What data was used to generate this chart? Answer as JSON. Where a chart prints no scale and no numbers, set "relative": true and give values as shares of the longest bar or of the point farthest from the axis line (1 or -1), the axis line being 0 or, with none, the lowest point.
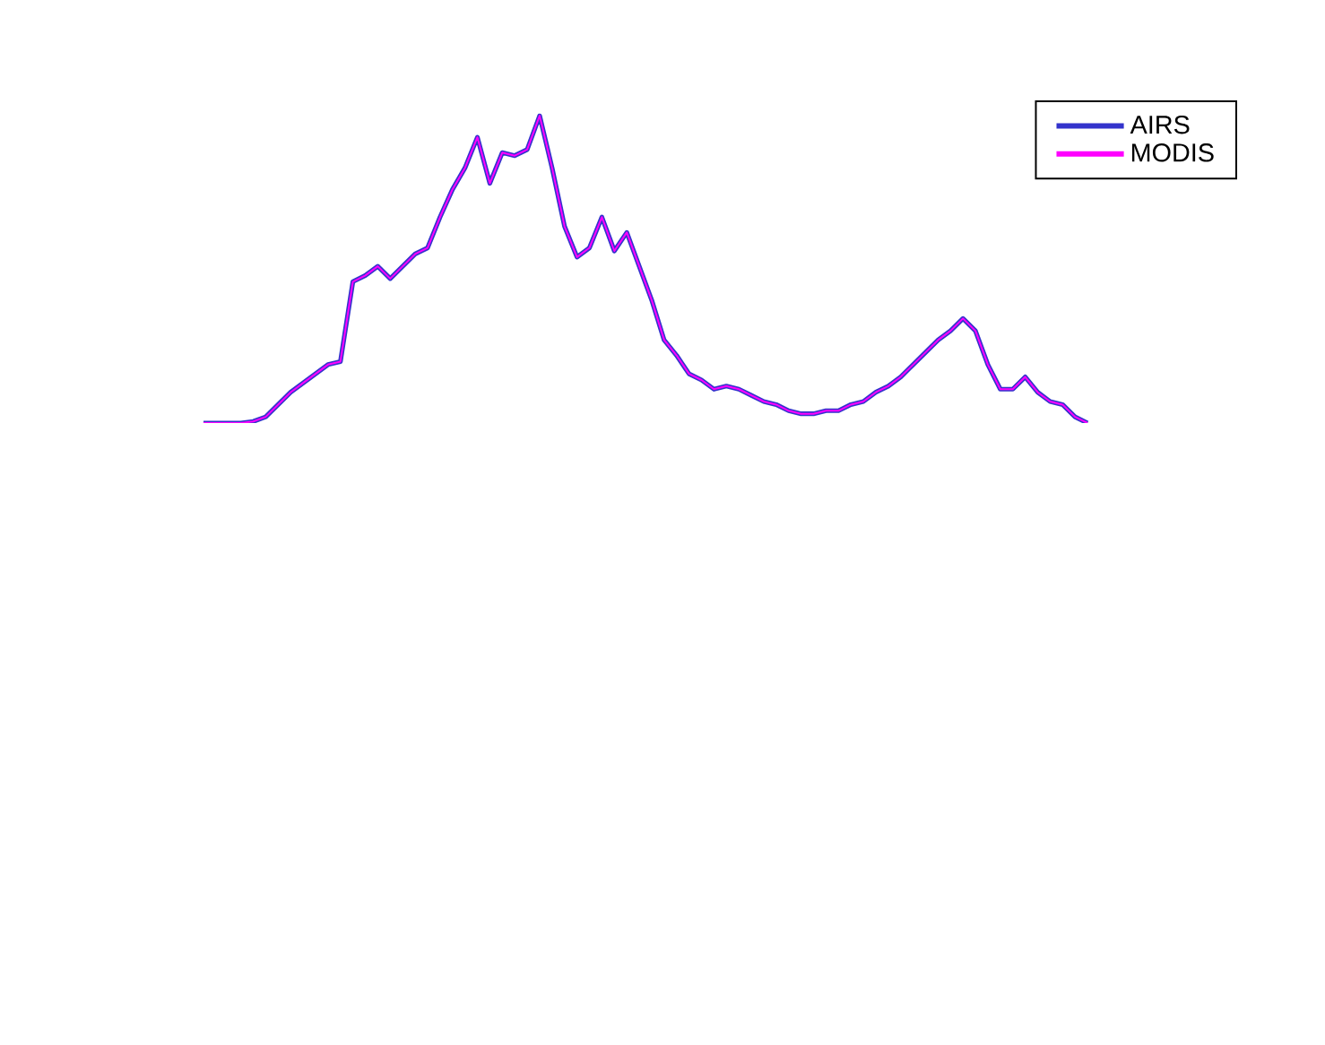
{
  "chart_data": {
    "type": "line",
    "relative": true,
    "legend": "top right",
    "categories": [
      null,
      null,
      null,
      null,
      null,
      null,
      null,
      null,
      null,
      null,
      null,
      null,
      null,
      null,
      null,
      null,
      null,
      null,
      null,
      null,
      null,
      null,
      null,
      null,
      null,
      null,
      null,
      null,
      null,
      null,
      null,
      null,
      null,
      null,
      null,
      null,
      null,
      null,
      null,
      null,
      null,
      null,
      null,
      null,
      null,
      null,
      null,
      null,
      null,
      null,
      null,
      null,
      null,
      null,
      null,
      null,
      null,
      null,
      null,
      null,
      null,
      null,
      null,
      null,
      null,
      null,
      null,
      null,
      null,
      null,
      null,
      null
    ],
    "series": [
      {
        "name": "AIRS",
        "color": "#3333cc",
        "values": [
          0,
          0,
          0,
          0,
          0.005,
          0.02,
          0.06,
          0.1,
          0.13,
          0.16,
          0.19,
          0.2,
          0.46,
          0.48,
          0.51,
          0.47,
          0.51,
          0.55,
          0.57,
          0.67,
          0.76,
          0.83,
          0.93,
          0.78,
          0.88,
          0.87,
          0.89,
          1,
          0.83,
          0.64,
          0.54,
          0.57,
          0.67,
          0.56,
          0.62,
          0.51,
          0.4,
          0.27,
          0.22,
          0.16,
          0.14,
          0.11,
          0.12,
          0.11,
          0.09,
          0.07,
          0.06,
          0.04,
          0.03,
          0.03,
          0.04,
          0.04,
          0.06,
          0.07,
          0.1,
          0.12,
          0.15,
          0.19,
          0.23,
          0.27,
          0.3,
          0.34,
          0.3,
          0.19,
          0.11,
          0.11,
          0.15,
          0.1,
          0.07,
          0.06,
          0.02,
          0
        ]
      },
      {
        "name": "MODIS",
        "color": "#ff00ff",
        "values": [
          0,
          0,
          0,
          0,
          0.005,
          0.02,
          0.06,
          0.1,
          0.13,
          0.16,
          0.19,
          0.2,
          0.46,
          0.48,
          0.51,
          0.47,
          0.51,
          0.55,
          0.57,
          0.67,
          0.76,
          0.83,
          0.93,
          0.78,
          0.88,
          0.87,
          0.89,
          1,
          0.83,
          0.64,
          0.54,
          0.57,
          0.67,
          0.56,
          0.62,
          0.51,
          0.4,
          0.27,
          0.22,
          0.16,
          0.14,
          0.11,
          0.12,
          0.11,
          0.09,
          0.07,
          0.06,
          0.04,
          0.03,
          0.03,
          0.04,
          0.04,
          0.06,
          0.07,
          0.1,
          0.12,
          0.15,
          0.19,
          0.23,
          0.27,
          0.3,
          0.34,
          0.3,
          0.19,
          0.11,
          0.11,
          0.15,
          0.1,
          0.07,
          0.06,
          0.02,
          0
        ]
      }
    ]
  }
}
